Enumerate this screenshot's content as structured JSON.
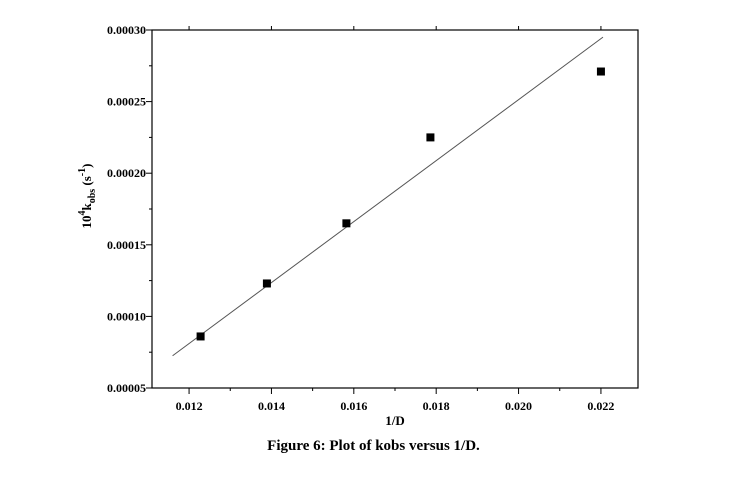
{
  "chart_data": {
    "type": "scatter",
    "x_ticks": [
      "0.012",
      "0.014",
      "0.016",
      "0.018",
      "0.020",
      "0.022"
    ],
    "y_ticks": [
      "0.00005",
      "0.00010",
      "0.00015",
      "0.00020",
      "0.00025",
      "0.00030"
    ],
    "xlim": [
      0.0111,
      0.0229
    ],
    "ylim": [
      5e-05,
      0.0003
    ],
    "xlabel": "1/D",
    "ylabel": {
      "base": "10",
      "sup4": "4",
      "k": "k",
      "sub": "obs",
      "unit_open": " (s",
      "unit_sup": "-1",
      "unit_close": ")"
    },
    "points": [
      {
        "x": 0.01228,
        "y": 8.6e-05
      },
      {
        "x": 0.01389,
        "y": 0.000123
      },
      {
        "x": 0.01582,
        "y": 0.000165
      },
      {
        "x": 0.01786,
        "y": 0.000225
      },
      {
        "x": 0.022,
        "y": 0.000271
      }
    ],
    "fit_line": {
      "x": [
        0.0116,
        0.02205
      ],
      "y": [
        7.25e-05,
        0.000295
      ]
    },
    "grid": false,
    "colors": {
      "marker": "#000000",
      "line": "#555555",
      "axes": "#000000"
    }
  },
  "caption": "Figure 6: Plot of kobs versus 1/D."
}
